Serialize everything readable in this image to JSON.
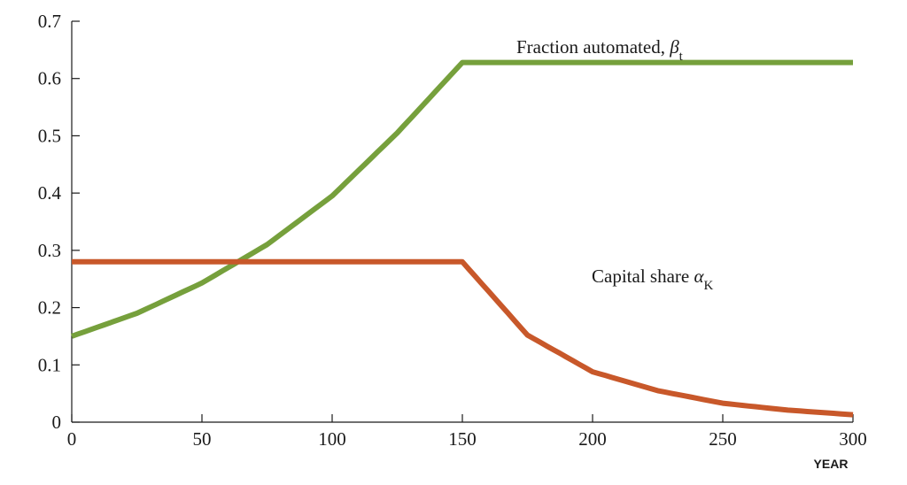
{
  "chart_data": {
    "type": "line",
    "title": "",
    "xlabel": "YEAR",
    "ylabel": "",
    "xlim": [
      0,
      300
    ],
    "ylim": [
      0,
      0.7
    ],
    "xticks": [
      "0",
      "50",
      "100",
      "150",
      "200",
      "250",
      "300"
    ],
    "yticks": [
      "0",
      "0.1",
      "0.2",
      "0.3",
      "0.4",
      "0.5",
      "0.6",
      "0.7"
    ],
    "grid": false,
    "series": [
      {
        "color": "#76a03c",
        "x": [
          0,
          25,
          50,
          75,
          100,
          125,
          150,
          175,
          200,
          225,
          250,
          275,
          300
        ],
        "values": [
          0.15,
          0.19,
          0.243,
          0.31,
          0.395,
          0.505,
          0.628,
          0.628,
          0.628,
          0.628,
          0.628,
          0.628,
          0.628
        ]
      },
      {
        "color": "#c8582a",
        "x": [
          0,
          25,
          50,
          75,
          100,
          125,
          150,
          175,
          200,
          225,
          250,
          275,
          300
        ],
        "values": [
          0.28,
          0.28,
          0.28,
          0.28,
          0.28,
          0.28,
          0.28,
          0.152,
          0.088,
          0.055,
          0.033,
          0.021,
          0.013
        ]
      }
    ],
    "annotations": [
      {
        "text": "Fraction automated, ",
        "math": "β",
        "sub": "t"
      },
      {
        "text": "Capital share ",
        "math": "α",
        "sub": "K"
      }
    ]
  }
}
